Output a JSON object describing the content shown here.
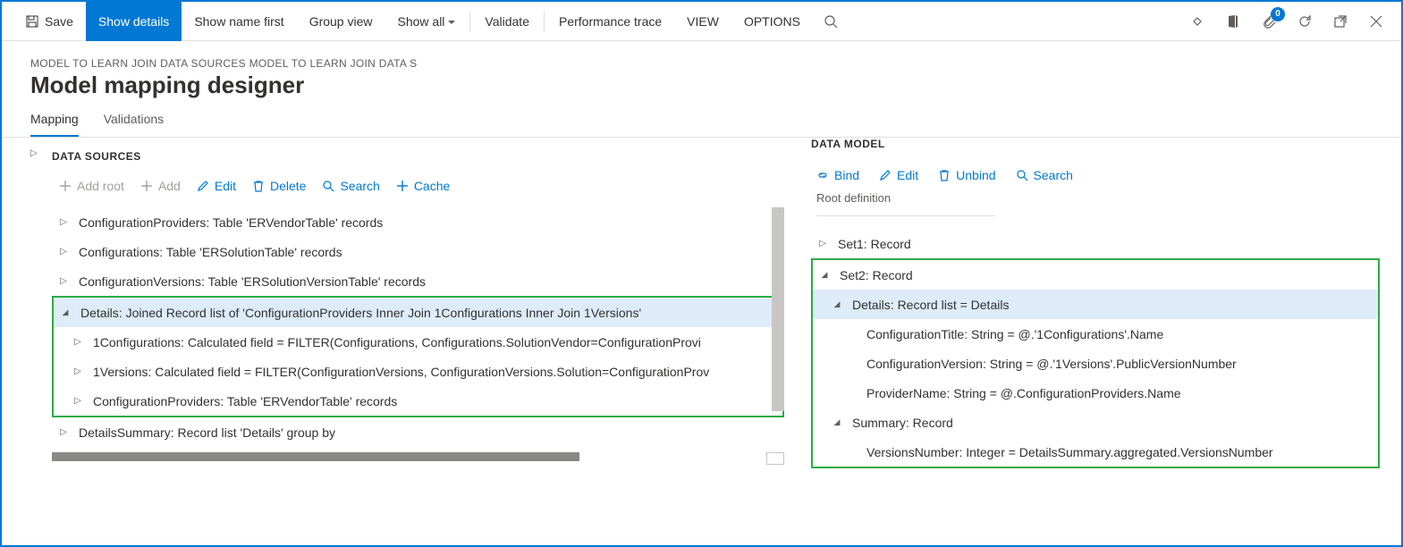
{
  "toolbar": {
    "save": "Save",
    "show_details": "Show details",
    "show_name_first": "Show name first",
    "group_view": "Group view",
    "show_all": "Show all",
    "validate": "Validate",
    "perf_trace": "Performance trace",
    "view": "VIEW",
    "options": "OPTIONS",
    "badge_count": "0"
  },
  "breadcrumb": "MODEL TO LEARN JOIN DATA SOURCES MODEL TO LEARN JOIN DATA S",
  "page_title": "Model mapping designer",
  "tabs": {
    "mapping": "Mapping",
    "validations": "Validations"
  },
  "left": {
    "section": "DATA SOURCES",
    "actions": {
      "add_root": "Add root",
      "add": "Add",
      "edit": "Edit",
      "delete": "Delete",
      "search": "Search",
      "cache": "Cache"
    },
    "tree": [
      {
        "state": "collapsed",
        "indent": 0,
        "label": "ConfigurationProviders: Table 'ERVendorTable' records"
      },
      {
        "state": "collapsed",
        "indent": 0,
        "label": "Configurations: Table 'ERSolutionTable' records"
      },
      {
        "state": "collapsed",
        "indent": 0,
        "label": "ConfigurationVersions: Table 'ERSolutionVersionTable' records"
      },
      {
        "state": "expanded",
        "indent": 0,
        "label": "Details: Joined Record list of 'ConfigurationProviders Inner Join 1Configurations Inner Join 1Versions'",
        "selected": true,
        "greenStart": true
      },
      {
        "state": "collapsed",
        "indent": 1,
        "label": "1Configurations: Calculated field = FILTER(Configurations, Configurations.SolutionVendor=ConfigurationProvi"
      },
      {
        "state": "collapsed",
        "indent": 1,
        "label": "1Versions: Calculated field = FILTER(ConfigurationVersions, ConfigurationVersions.Solution=ConfigurationProv"
      },
      {
        "state": "collapsed",
        "indent": 1,
        "label": "ConfigurationProviders: Table 'ERVendorTable' records",
        "greenEnd": true
      },
      {
        "state": "collapsed",
        "indent": 0,
        "label": "DetailsSummary: Record list 'Details' group by"
      }
    ]
  },
  "right": {
    "section": "DATA MODEL",
    "actions": {
      "bind": "Bind",
      "edit": "Edit",
      "unbind": "Unbind",
      "search": "Search"
    },
    "root_def": "Root definition",
    "tree": [
      {
        "state": "collapsed",
        "indent": 0,
        "label": "Set1: Record"
      },
      {
        "state": "expanded",
        "indent": 0,
        "label": "Set2: Record",
        "greenStart": true
      },
      {
        "state": "expanded",
        "indent": 1,
        "label": "Details: Record list = Details",
        "selected": true
      },
      {
        "state": "leaf",
        "indent": 2,
        "label": "ConfigurationTitle: String = @.'1Configurations'.Name"
      },
      {
        "state": "leaf",
        "indent": 2,
        "label": "ConfigurationVersion: String = @.'1Versions'.PublicVersionNumber"
      },
      {
        "state": "leaf",
        "indent": 2,
        "label": "ProviderName: String = @.ConfigurationProviders.Name"
      },
      {
        "state": "expanded",
        "indent": 1,
        "label": "Summary: Record"
      },
      {
        "state": "leaf",
        "indent": 2,
        "label": "VersionsNumber: Integer = DetailsSummary.aggregated.VersionsNumber",
        "greenEnd": true
      }
    ]
  },
  "colors": {
    "accent": "#0078d4",
    "green": "#2bab46",
    "sel_bg": "#deecf9"
  }
}
